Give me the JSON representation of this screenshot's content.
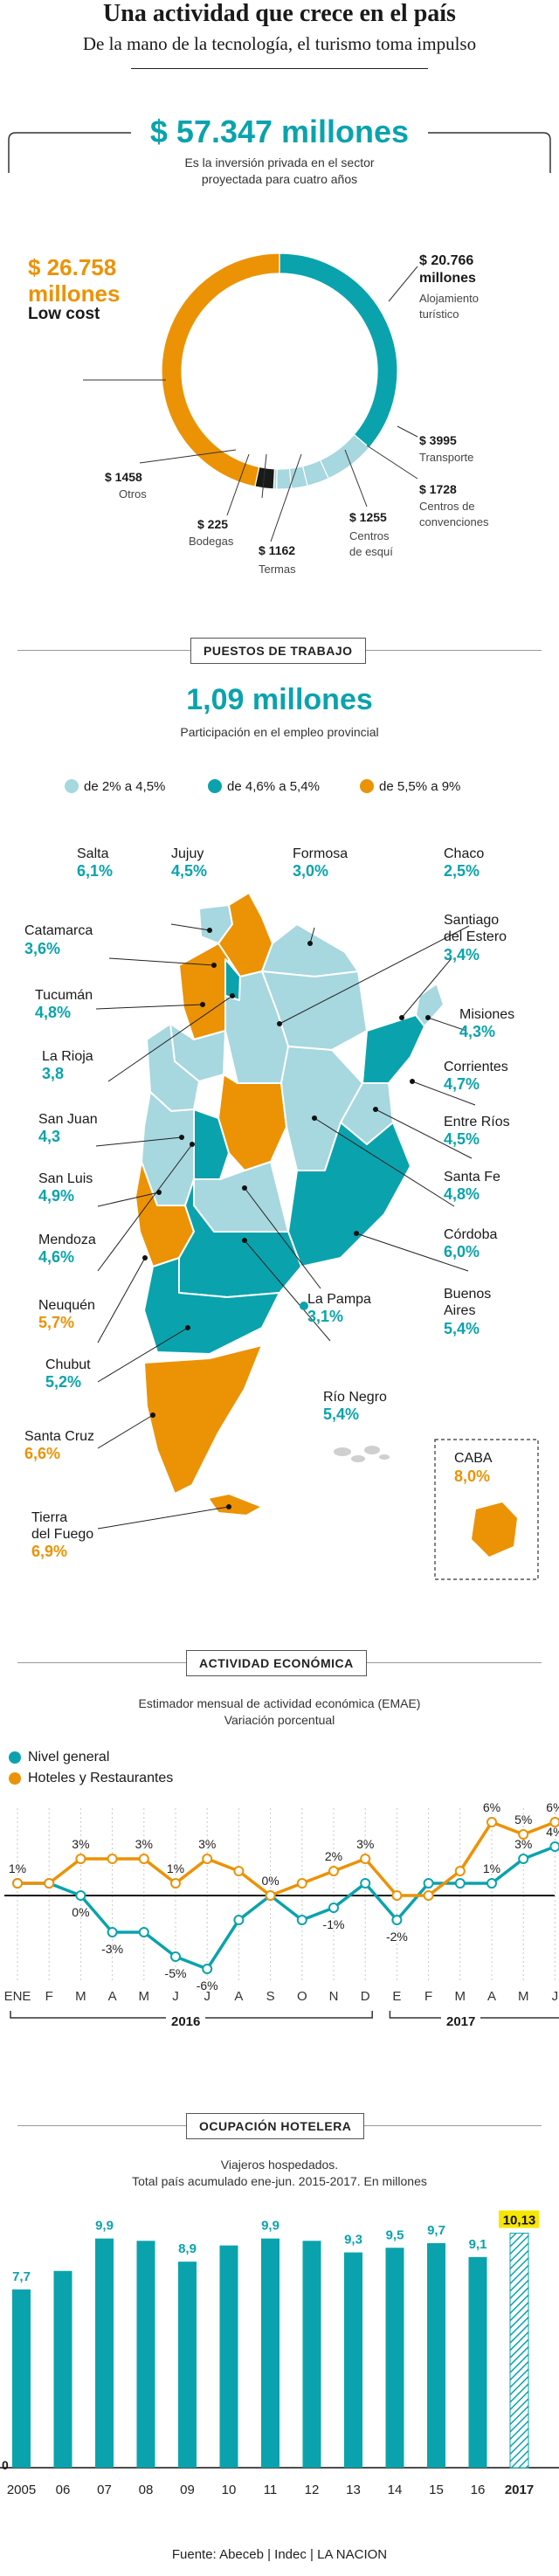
{
  "header": {
    "title": "Una actividad que crece en el país",
    "subtitle": "De la mano de la tecnología, el turismo toma impulso"
  },
  "investment": {
    "total": "$ 57.347 millones",
    "caption_line1": "Es la inversión privada en el sector",
    "caption_line2": "proyectada para cuatro años",
    "low_cost_value": "$ 26.758",
    "low_cost_unit": "millones",
    "low_cost_label": "Low cost",
    "aloj_value": "$ 20.766",
    "aloj_unit": "millones",
    "aloj_label1": "Alojamiento",
    "aloj_label2": "turístico",
    "transporte_value": "$ 3995",
    "transporte_label": "Transporte",
    "convenciones_value": "$ 1728",
    "convenciones_label1": "Centros de",
    "convenciones_label2": "convenciones",
    "esqui_value": "$ 1255",
    "esqui_label1": "Centros",
    "esqui_label2": "de esquí",
    "termas_value": "$ 1162",
    "termas_label": "Termas",
    "bodegas_value": "$ 225",
    "bodegas_label": "Bodegas",
    "otros_value": "$ 1458",
    "otros_label": "Otros"
  },
  "employment": {
    "section_label": "PUESTOS DE TRABAJO",
    "total": "1,09 millones",
    "caption": "Participación en el empleo provincial",
    "legend": [
      {
        "label": "de 2% a 4,5%",
        "color": "#a7d7df"
      },
      {
        "label": "de 4,6% a 5,4%",
        "color": "#0aa3ad"
      },
      {
        "label": "de 5,5% a 9%",
        "color": "#ec9205"
      }
    ],
    "provinces": {
      "salta": {
        "name": "Salta",
        "value": "6,1%"
      },
      "jujuy": {
        "name": "Jujuy",
        "value": "4,5%"
      },
      "formosa": {
        "name": "Formosa",
        "value": "3,0%"
      },
      "chaco": {
        "name": "Chaco",
        "value": "2,5%"
      },
      "catamarca": {
        "name": "Catamarca",
        "value": "3,6%"
      },
      "santiago": {
        "name1": "Santiago",
        "name2": "del Estero",
        "value": "3,4%"
      },
      "tucuman": {
        "name": "Tucumán",
        "value": "4,8%"
      },
      "misiones": {
        "name": "Misiones",
        "value": "4,3%"
      },
      "larioja": {
        "name": "La Rioja",
        "value": "3,8"
      },
      "corrientes": {
        "name": "Corrientes",
        "value": "4,7%"
      },
      "sanjuan": {
        "name": "San Juan",
        "value": "4,3"
      },
      "entrerios": {
        "name": "Entre Ríos",
        "value": "4,5%"
      },
      "sanluis": {
        "name": "San Luis",
        "value": "4,9%"
      },
      "santafe": {
        "name": "Santa Fe",
        "value": "4,8%"
      },
      "mendoza": {
        "name": "Mendoza",
        "value": "4,6%"
      },
      "cordoba": {
        "name": "Córdoba",
        "value": "6,0%"
      },
      "neuquen": {
        "name": "Neuquén",
        "value": "5,7%"
      },
      "lapampa": {
        "name": "La Pampa",
        "value": "3,1%"
      },
      "buenosaires": {
        "name1": "Buenos",
        "name2": "Aires",
        "value": "5,4%"
      },
      "chubut": {
        "name": "Chubut",
        "value": "5,2%"
      },
      "rionegro": {
        "name": "Río Negro",
        "value": "5,4%"
      },
      "santacruz": {
        "name": "Santa Cruz",
        "value": "6,6%"
      },
      "tierradelfuego": {
        "name1": "Tierra",
        "name2": "del Fuego",
        "value": "6,9%"
      },
      "caba": {
        "name": "CABA",
        "value": "8,0%"
      }
    }
  },
  "activity": {
    "section_label": "ACTIVIDAD ECONÓMICA",
    "caption_line1": "Estimador mensual de actividad económica (EMAE)",
    "caption_line2": "Variación porcentual",
    "legend_general": "Nivel general",
    "legend_hoteles": "Hoteles y Restaurantes",
    "year_2016": "2016",
    "year_2017": "2017"
  },
  "occupancy": {
    "section_label": "OCUPACIÓN HOTELERA",
    "caption_line1": "Viajeros hospedados.",
    "caption_line2": "Total país acumulado ene-jun. 2015-2017. En millones",
    "baseline_label": "0"
  },
  "source": "Fuente: Abeceb | Indec | LA NACION",
  "colors": {
    "teal": "#0aa3ad",
    "light_teal": "#a7d7df",
    "orange": "#ec9205",
    "black": "#1a1a1a",
    "highlight": "#f7e600"
  },
  "chart_data": [
    {
      "type": "pie",
      "title": "$ 57.347 millones",
      "categories": [
        "Low cost",
        "Alojamiento turístico",
        "Transporte",
        "Centros de convenciones",
        "Centros de esquí",
        "Termas",
        "Bodegas",
        "Otros"
      ],
      "values": [
        26758,
        20766,
        3995,
        1728,
        1255,
        1162,
        225,
        1458
      ],
      "unit": "millones de $"
    },
    {
      "type": "line",
      "title": "Estimador mensual de actividad económica (EMAE)",
      "subtitle": "Variación porcentual",
      "categories": [
        "ENE",
        "F",
        "M",
        "A",
        "M",
        "J",
        "J",
        "A",
        "S",
        "O",
        "N",
        "D",
        "E",
        "F",
        "M",
        "A",
        "M",
        "J"
      ],
      "series": [
        {
          "name": "Nivel general",
          "values": [
            1,
            1,
            0,
            -3,
            -3,
            -5,
            -6,
            -2,
            0,
            -2,
            -1,
            1,
            -2,
            1,
            1,
            1,
            3,
            4
          ]
        },
        {
          "name": "Hoteles y Restaurantes",
          "values": [
            1,
            1,
            3,
            3,
            3,
            1,
            3,
            2,
            0,
            1,
            2,
            3,
            0,
            0,
            2,
            6,
            5,
            6
          ]
        }
      ],
      "labels_general": [
        "1%",
        "",
        "0%",
        "-3%",
        "",
        "-5%",
        "-6%",
        "",
        "",
        "",
        "-1%",
        "",
        "-2%",
        "",
        "",
        "1%",
        "3%",
        "4%"
      ],
      "labels_hoteles": [
        "",
        "",
        "3%",
        "",
        "3%",
        "1%",
        "3%",
        "",
        "0%",
        "",
        "2%",
        "3%",
        "",
        "",
        "",
        "6%",
        "5%",
        "6%"
      ],
      "ylim": [
        -7,
        7
      ]
    },
    {
      "type": "bar",
      "title": "Viajeros hospedados.",
      "subtitle": "Total país acumulado ene-jun. 2015-2017. En millones",
      "categories": [
        "2005",
        "06",
        "07",
        "08",
        "09",
        "10",
        "11",
        "12",
        "13",
        "14",
        "15",
        "16",
        "2017"
      ],
      "values": [
        7.7,
        8.5,
        9.9,
        9.8,
        8.9,
        9.6,
        9.9,
        9.8,
        9.3,
        9.5,
        9.7,
        9.1,
        10.13
      ],
      "value_labels": [
        "7,7",
        "",
        "9,9",
        "",
        "8,9",
        "",
        "9,9",
        "",
        "9,3",
        "9,5",
        "9,7",
        "9,1",
        "10,13"
      ],
      "ylim": [
        0,
        10.5
      ]
    }
  ]
}
